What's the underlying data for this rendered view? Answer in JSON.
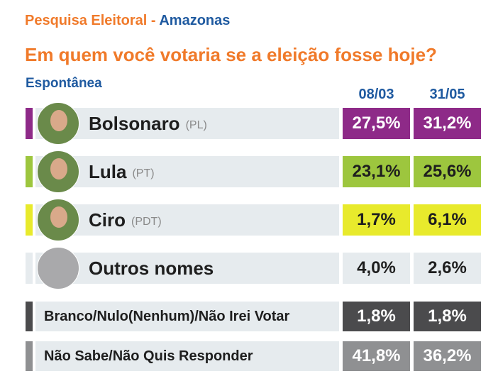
{
  "header": {
    "source": "Pesquisa Eleitoral",
    "separator": "-",
    "region": "Amazonas",
    "question": "Em quem você votaria se a eleição fosse hoje?",
    "subtitle": "Espontânea"
  },
  "table": {
    "columns": [
      "08/03",
      "31/05"
    ],
    "rows": [
      {
        "name": "Bolsonaro",
        "party": "(PL)",
        "values": [
          "27,5%",
          "31,2%"
        ],
        "color": "#8e2a88",
        "text_color": "#ffffff",
        "photo": true
      },
      {
        "name": "Lula",
        "party": "(PT)",
        "values": [
          "23,1%",
          "25,6%"
        ],
        "color": "#9dc63e",
        "text_color": "#1e1e1e",
        "photo": true
      },
      {
        "name": "Ciro",
        "party": "(PDT)",
        "values": [
          "1,7%",
          "6,1%"
        ],
        "color": "#e8ea2c",
        "text_color": "#1e1e1e",
        "photo": true
      },
      {
        "name": "Outros nomes",
        "values": [
          "4,0%",
          "2,6%"
        ],
        "color": "#e6ebee",
        "text_color": "#1e1e1e",
        "photo": true
      },
      {
        "name": "Branco/Nulo(Nenhum)/Não Irei Votar",
        "values": [
          "1,8%",
          "1,8%"
        ],
        "color": "#4b4b4d",
        "text_color": "#ffffff",
        "photo": false
      },
      {
        "name": "Não Sabe/Não Quis Responder",
        "values": [
          "41,8%",
          "36,2%"
        ],
        "color": "#8f9092",
        "text_color": "#ffffff",
        "photo": false
      }
    ]
  }
}
